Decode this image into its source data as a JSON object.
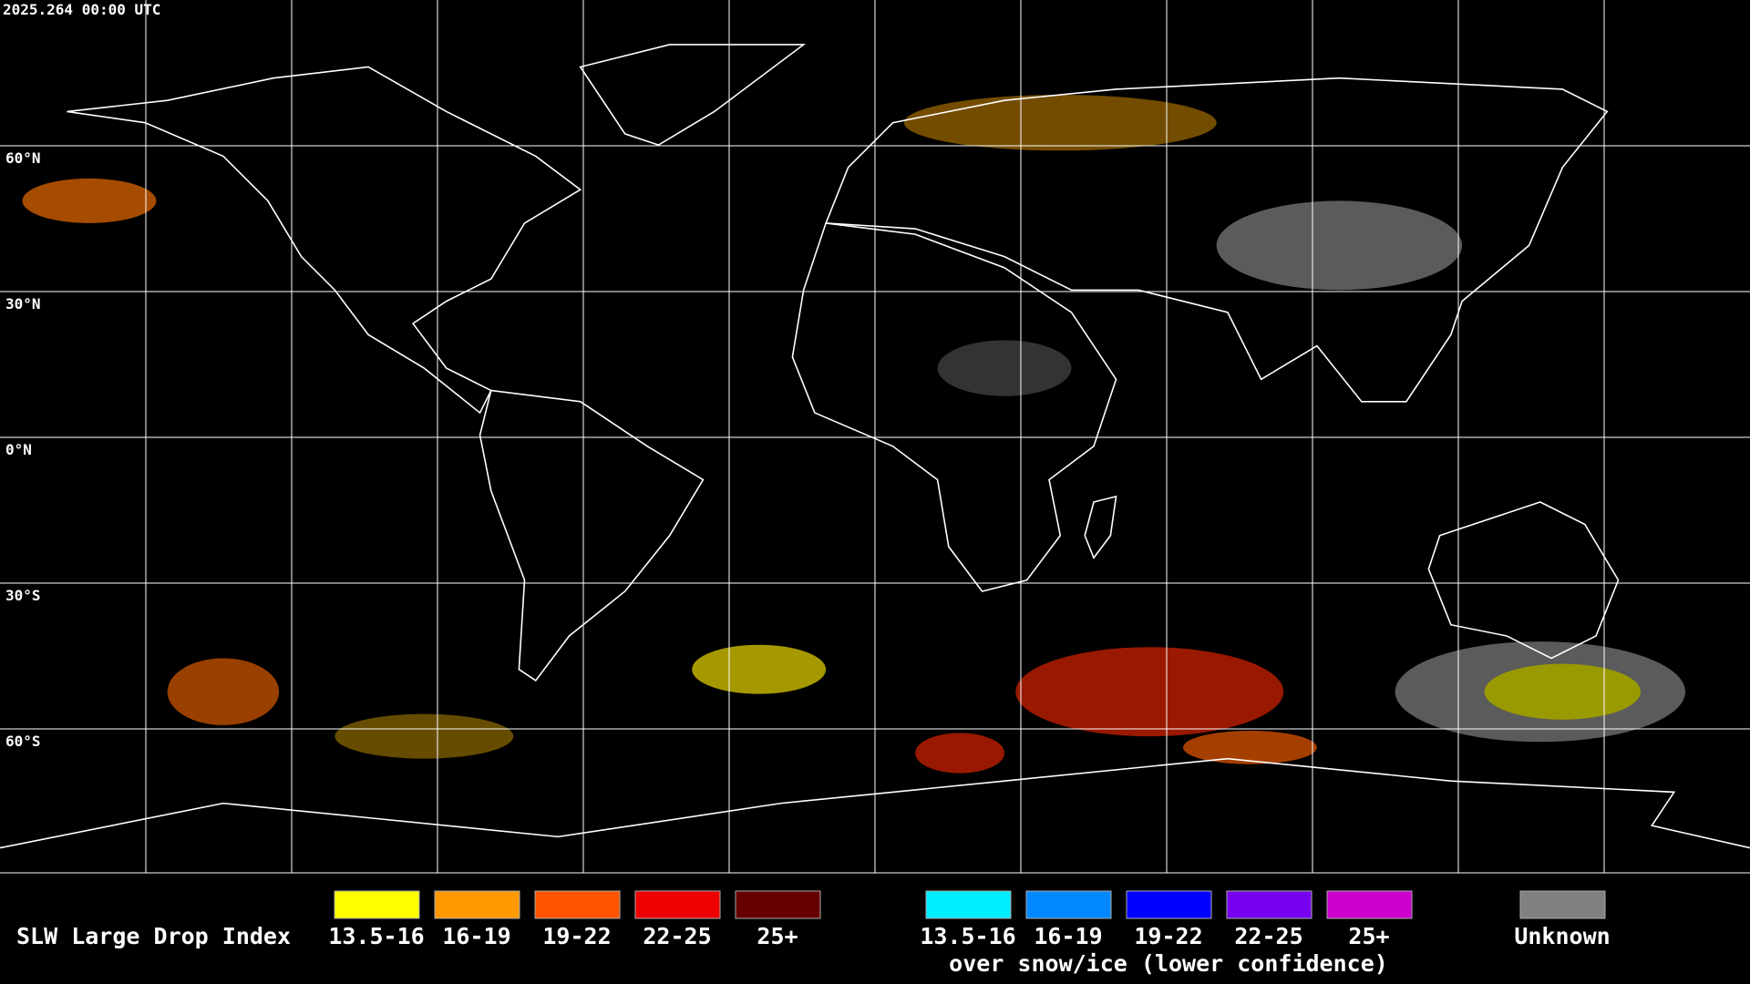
{
  "header": {
    "timestamp": "2025.264 00:00 UTC"
  },
  "map": {
    "lat_labels": [
      "60°N",
      "30°N",
      "0°N",
      "30°S",
      "60°S"
    ]
  },
  "legend": {
    "title": "SLW Large Drop Index",
    "groups": [
      {
        "items": [
          {
            "label": "13.5-16",
            "color": "#ffff00"
          },
          {
            "label": "16-19",
            "color": "#ff9900"
          },
          {
            "label": "19-22",
            "color": "#ff5500"
          },
          {
            "label": "22-25",
            "color": "#ee0000"
          },
          {
            "label": "25+",
            "color": "#660000"
          }
        ]
      },
      {
        "items": [
          {
            "label": "13.5-16",
            "color": "#00eeff"
          },
          {
            "label": "16-19",
            "color": "#0088ff"
          },
          {
            "label": "19-22",
            "color": "#0000ff"
          },
          {
            "label": "22-25",
            "color": "#7700ee"
          },
          {
            "label": "25+",
            "color": "#cc00cc"
          }
        ],
        "caption": "over snow/ice (lower confidence)"
      },
      {
        "items": [
          {
            "label": "Unknown",
            "color": "#808080"
          }
        ]
      }
    ]
  }
}
